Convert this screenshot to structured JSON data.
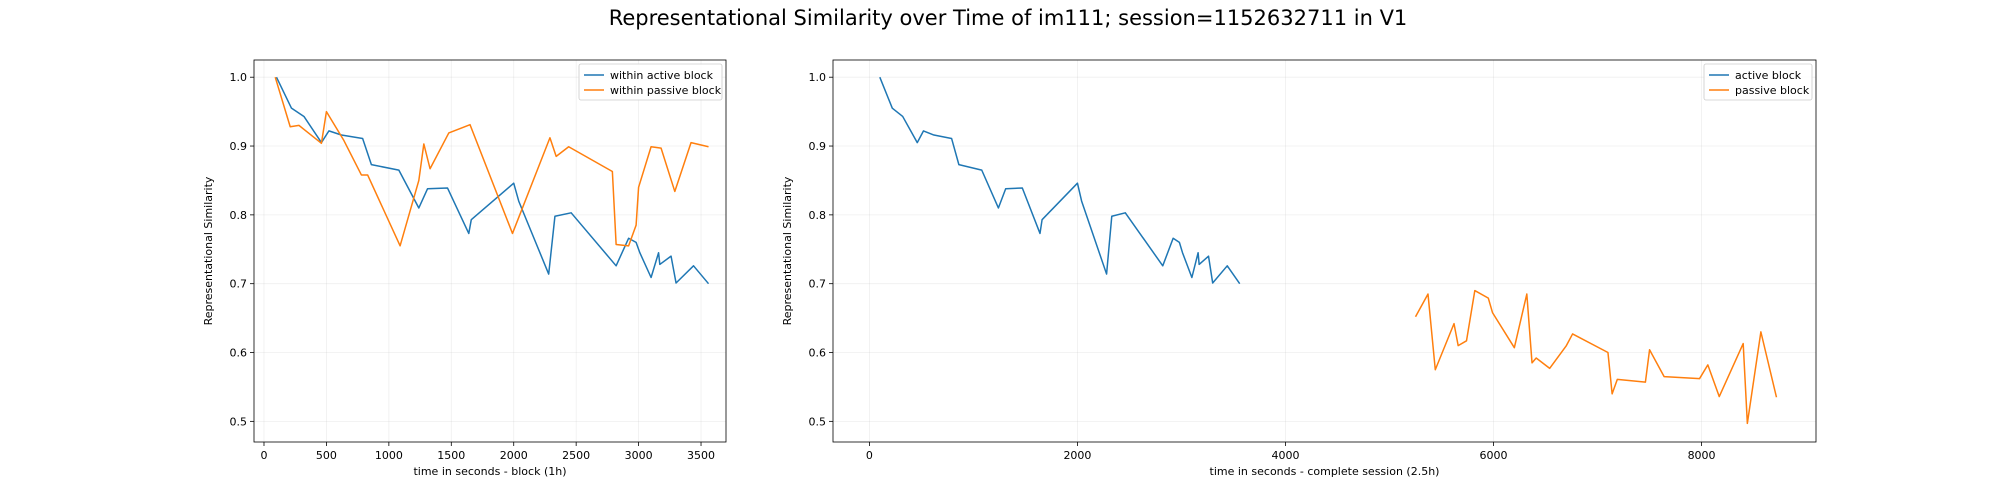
{
  "suptitle": "Representational Similarity over Time of im111; session=1152632711 in V1",
  "colors": {
    "blue": "#1f77b4",
    "orange": "#ff7f0e"
  },
  "chart_data": [
    {
      "type": "line",
      "xlabel": "time in seconds   -   block (1h)",
      "ylabel": "Representational Similarity",
      "xlim": [
        -80,
        3700
      ],
      "ylim": [
        0.47,
        1.025
      ],
      "xticks": [
        0,
        500,
        1000,
        1500,
        2000,
        2500,
        3000,
        3500
      ],
      "yticks": [
        0.5,
        0.6,
        0.7,
        0.8,
        0.9,
        1.0
      ],
      "ytick_labels": [
        "0.5",
        "0.6",
        "0.7",
        "0.8",
        "0.9",
        "1.0"
      ],
      "grid": true,
      "legend_position": "top-right",
      "series": [
        {
          "name": "within active block",
          "color": "#1f77b4",
          "points": [
            [
              100,
              1.0
            ],
            [
              220,
              0.955
            ],
            [
              320,
              0.943
            ],
            [
              460,
              0.905
            ],
            [
              520,
              0.922
            ],
            [
              620,
              0.916
            ],
            [
              790,
              0.911
            ],
            [
              860,
              0.873
            ],
            [
              1080,
              0.865
            ],
            [
              1240,
              0.81
            ],
            [
              1310,
              0.838
            ],
            [
              1470,
              0.839
            ],
            [
              1640,
              0.773
            ],
            [
              1660,
              0.793
            ],
            [
              2000,
              0.846
            ],
            [
              2040,
              0.82
            ],
            [
              2280,
              0.714
            ],
            [
              2330,
              0.798
            ],
            [
              2460,
              0.803
            ],
            [
              2820,
              0.726
            ],
            [
              2920,
              0.766
            ],
            [
              2980,
              0.76
            ],
            [
              3010,
              0.745
            ],
            [
              3100,
              0.709
            ],
            [
              3160,
              0.745
            ],
            [
              3170,
              0.728
            ],
            [
              3260,
              0.74
            ],
            [
              3300,
              0.701
            ],
            [
              3440,
              0.726
            ],
            [
              3560,
              0.7
            ]
          ]
        },
        {
          "name": "within passive block",
          "color": "#ff7f0e",
          "points": [
            [
              90,
              1.0
            ],
            [
              210,
              0.928
            ],
            [
              280,
              0.93
            ],
            [
              460,
              0.904
            ],
            [
              500,
              0.95
            ],
            [
              640,
              0.908
            ],
            [
              780,
              0.858
            ],
            [
              830,
              0.858
            ],
            [
              1090,
              0.755
            ],
            [
              1240,
              0.85
            ],
            [
              1280,
              0.903
            ],
            [
              1330,
              0.867
            ],
            [
              1480,
              0.919
            ],
            [
              1650,
              0.931
            ],
            [
              1990,
              0.773
            ],
            [
              2290,
              0.912
            ],
            [
              2340,
              0.885
            ],
            [
              2440,
              0.899
            ],
            [
              2790,
              0.863
            ],
            [
              2820,
              0.757
            ],
            [
              2920,
              0.755
            ],
            [
              2980,
              0.785
            ],
            [
              3000,
              0.84
            ],
            [
              3100,
              0.899
            ],
            [
              3180,
              0.897
            ],
            [
              3290,
              0.834
            ],
            [
              3420,
              0.905
            ],
            [
              3560,
              0.899
            ]
          ]
        }
      ]
    },
    {
      "type": "line",
      "xlabel": "time in seconds   -   complete session (2.5h)",
      "ylabel": "Representational Similarity",
      "xlim": [
        -350,
        9100
      ],
      "ylim": [
        0.47,
        1.025
      ],
      "xticks": [
        0,
        2000,
        4000,
        6000,
        8000
      ],
      "yticks": [
        0.5,
        0.6,
        0.7,
        0.8,
        0.9,
        1.0
      ],
      "ytick_labels": [
        "0.5",
        "0.6",
        "0.7",
        "0.8",
        "0.9",
        "1.0"
      ],
      "grid": true,
      "legend_position": "top-right",
      "series": [
        {
          "name": "active block",
          "color": "#1f77b4",
          "points": [
            [
              100,
              1.0
            ],
            [
              220,
              0.955
            ],
            [
              320,
              0.943
            ],
            [
              460,
              0.905
            ],
            [
              520,
              0.922
            ],
            [
              620,
              0.916
            ],
            [
              790,
              0.911
            ],
            [
              860,
              0.873
            ],
            [
              1080,
              0.865
            ],
            [
              1240,
              0.81
            ],
            [
              1310,
              0.838
            ],
            [
              1470,
              0.839
            ],
            [
              1640,
              0.773
            ],
            [
              1660,
              0.793
            ],
            [
              2000,
              0.846
            ],
            [
              2040,
              0.82
            ],
            [
              2280,
              0.714
            ],
            [
              2330,
              0.798
            ],
            [
              2460,
              0.803
            ],
            [
              2820,
              0.726
            ],
            [
              2920,
              0.766
            ],
            [
              2980,
              0.76
            ],
            [
              3010,
              0.745
            ],
            [
              3100,
              0.709
            ],
            [
              3160,
              0.745
            ],
            [
              3170,
              0.728
            ],
            [
              3260,
              0.74
            ],
            [
              3300,
              0.701
            ],
            [
              3440,
              0.726
            ],
            [
              3560,
              0.7
            ]
          ]
        },
        {
          "name": "passive block",
          "color": "#ff7f0e",
          "points": [
            [
              5250,
              0.652
            ],
            [
              5370,
              0.685
            ],
            [
              5440,
              0.575
            ],
            [
              5620,
              0.642
            ],
            [
              5660,
              0.61
            ],
            [
              5740,
              0.617
            ],
            [
              5820,
              0.69
            ],
            [
              5950,
              0.679
            ],
            [
              5990,
              0.658
            ],
            [
              6200,
              0.607
            ],
            [
              6320,
              0.685
            ],
            [
              6370,
              0.585
            ],
            [
              6410,
              0.592
            ],
            [
              6540,
              0.577
            ],
            [
              6700,
              0.61
            ],
            [
              6760,
              0.627
            ],
            [
              7100,
              0.6
            ],
            [
              7140,
              0.54
            ],
            [
              7190,
              0.561
            ],
            [
              7460,
              0.557
            ],
            [
              7500,
              0.604
            ],
            [
              7640,
              0.565
            ],
            [
              7980,
              0.562
            ],
            [
              8060,
              0.582
            ],
            [
              8170,
              0.536
            ],
            [
              8400,
              0.613
            ],
            [
              8440,
              0.497
            ],
            [
              8570,
              0.63
            ],
            [
              8720,
              0.535
            ]
          ]
        }
      ]
    }
  ]
}
